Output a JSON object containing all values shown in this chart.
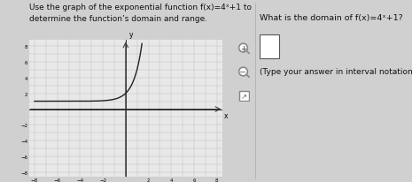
{
  "text_left_line1": "Use the graph of the exponential function f(x)=4ˣ+1 to",
  "text_left_line2": "determine the function’s domain and range.",
  "text_right_q": "What is the domain of f(x)=4ˣ+1?",
  "text_right_sub": "(Type your answer in interval notation.)",
  "graph_xlim": [
    -8,
    8
  ],
  "graph_ylim": [
    -8,
    8
  ],
  "graph_xticks": [
    -8,
    -6,
    -4,
    -2,
    2,
    4,
    6,
    8
  ],
  "graph_yticks": [
    -8,
    -6,
    -4,
    -2,
    2,
    4,
    6,
    8
  ],
  "curve_color": "#222222",
  "grid_color": "#bbbbbb",
  "axis_color": "#333333",
  "bg_color": "#e8e8e8",
  "page_bg": "#d0d0d0",
  "text_color": "#111111",
  "font_size_main": 6.5,
  "font_size_right": 6.8,
  "font_size_tick": 4.0,
  "font_size_axis_label": 5.5
}
